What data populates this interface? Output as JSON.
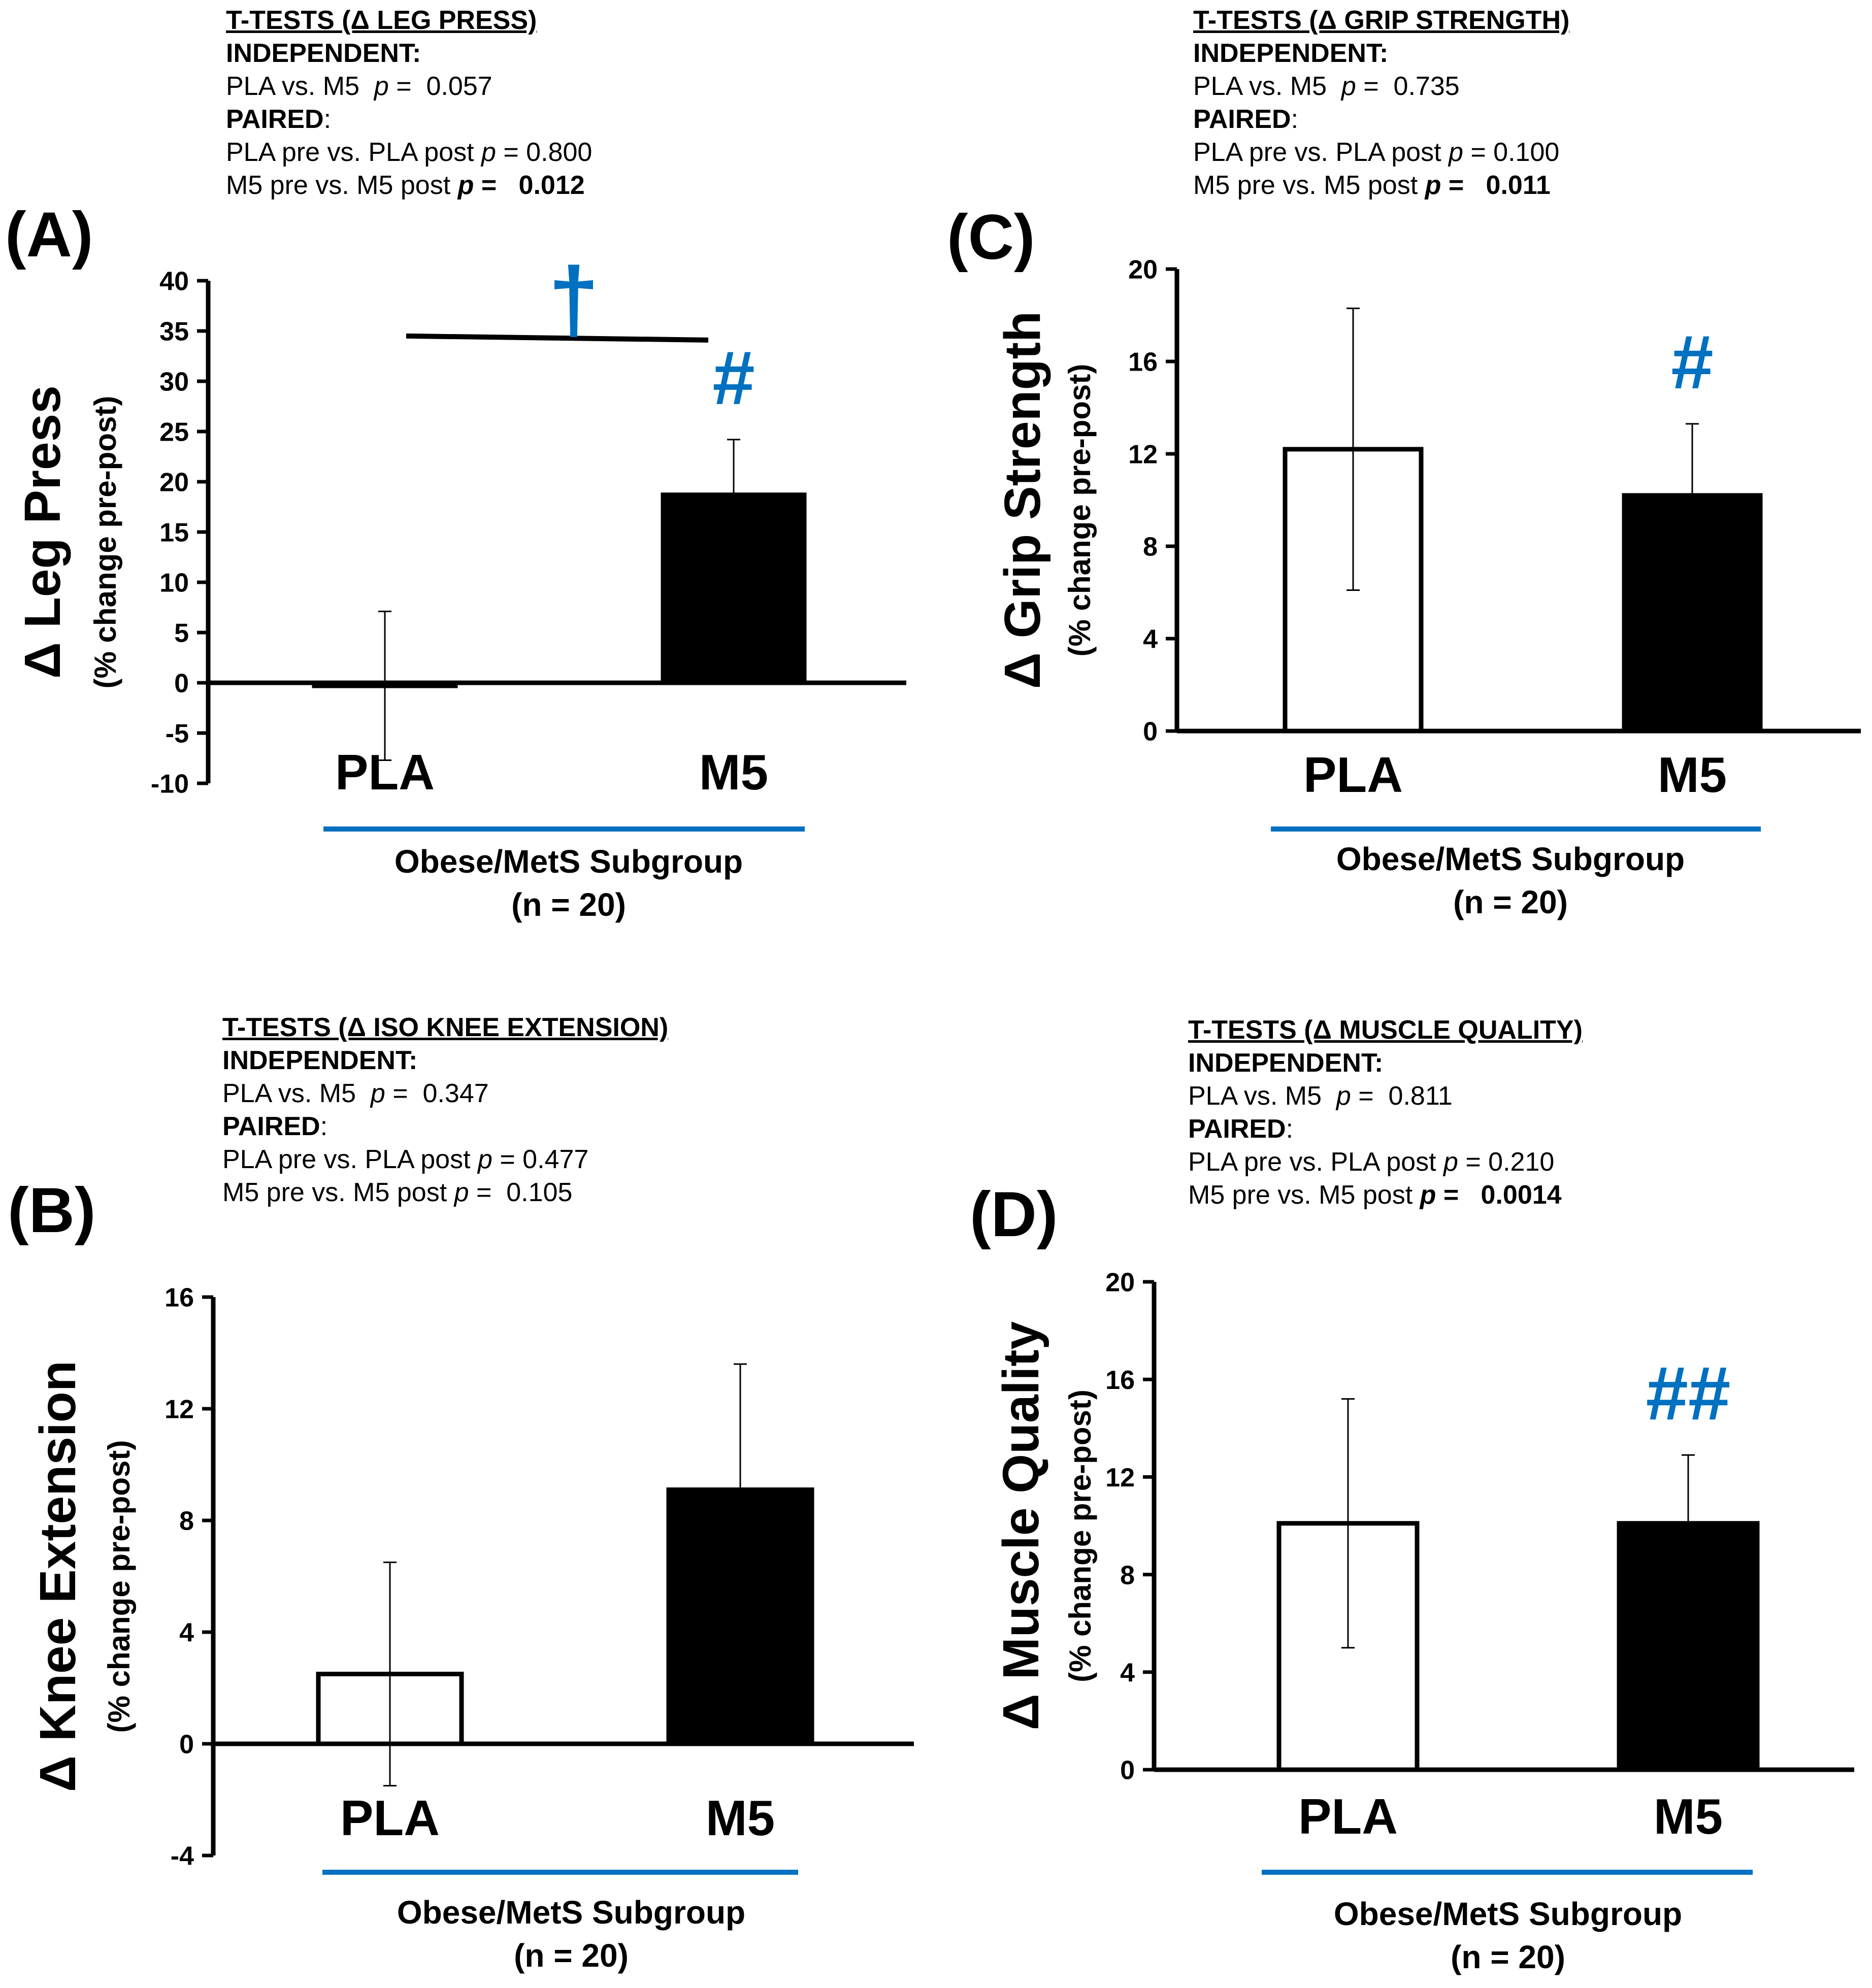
{
  "chart_data": [
    {
      "panel": "(A)",
      "type": "bar",
      "title": "T-TESTS (Δ LEG PRESS)",
      "independent_header": "INDEPENDENT:",
      "independent_line": "PLA vs. M5",
      "independent_p": "0.057",
      "paired_header": "PAIRED",
      "paired_lines": [
        {
          "label": "PLA pre vs. PLA post",
          "p": "0.800",
          "significant": false
        },
        {
          "label": "M5 pre vs. M5 post",
          "p": "0.012",
          "significant": true
        }
      ],
      "ylabel": "Δ Leg Press",
      "ylabel_sub": "(% change pre-post)",
      "ylim": [
        -10,
        40
      ],
      "yticks": [
        -10,
        -5,
        0,
        5,
        10,
        15,
        20,
        25,
        30,
        35,
        40
      ],
      "categories": [
        "PLA",
        "M5"
      ],
      "values": [
        -0.3,
        18.7
      ],
      "error": [
        7.4,
        5.5
      ],
      "bar_fill": [
        "#ffffff",
        "#000000"
      ],
      "annotations": [
        {
          "text": "#",
          "target": "M5",
          "color": "#0070c0"
        }
      ],
      "bracket": {
        "text": "†",
        "level": 34.3,
        "color": "#0070c0"
      },
      "xgroup": "Obese/MetS Subgroup",
      "n": "(n = 20)"
    },
    {
      "panel": "(C)",
      "type": "bar",
      "title": "T-TESTS (Δ GRIP STRENGTH)",
      "independent_header": "INDEPENDENT:",
      "independent_line": "PLA vs. M5",
      "independent_p": "0.735",
      "paired_header": "PAIRED",
      "paired_lines": [
        {
          "label": "PLA pre vs. PLA post",
          "p": "0.100",
          "significant": false
        },
        {
          "label": "M5 pre vs. M5 post",
          "p": "0.011",
          "significant": true
        }
      ],
      "ylabel": "Δ Grip Strength",
      "ylabel_sub": "(% change pre-post)",
      "ylim": [
        0,
        20
      ],
      "yticks": [
        0,
        4,
        8,
        12,
        16,
        20
      ],
      "categories": [
        "PLA",
        "M5"
      ],
      "values": [
        12.2,
        10.2
      ],
      "error": [
        6.1,
        3.1
      ],
      "bar_fill": [
        "#ffffff",
        "#000000"
      ],
      "annotations": [
        {
          "text": "#",
          "target": "M5",
          "color": "#0070c0"
        }
      ],
      "xgroup": "Obese/MetS Subgroup",
      "n": "(n = 20)"
    },
    {
      "panel": "(B)",
      "type": "bar",
      "title": "T-TESTS (Δ ISO KNEE EXTENSION)",
      "independent_header": "INDEPENDENT:",
      "independent_line": "PLA vs. M5",
      "independent_p": "0.347",
      "paired_header": "PAIRED",
      "paired_lines": [
        {
          "label": "PLA pre vs. PLA post",
          "p": "0.477",
          "significant": false
        },
        {
          "label": "M5 pre vs. M5 post",
          "p": "0.105",
          "significant": false
        }
      ],
      "ylabel": "Δ Knee Extension",
      "ylabel_sub": "(% change pre-post)",
      "ylim": [
        -4,
        16
      ],
      "yticks": [
        -4,
        0,
        4,
        8,
        12,
        16
      ],
      "categories": [
        "PLA",
        "M5"
      ],
      "values": [
        2.5,
        9.1
      ],
      "error": [
        4.0,
        4.5
      ],
      "bar_fill": [
        "#ffffff",
        "#000000"
      ],
      "annotations": [],
      "xgroup": "Obese/MetS Subgroup",
      "n": "(n = 20)"
    },
    {
      "panel": "(D)",
      "type": "bar",
      "title": "T-TESTS (Δ MUSCLE QUALITY)",
      "independent_header": "INDEPENDENT:",
      "independent_line": "PLA vs. M5",
      "independent_p": "0.811",
      "paired_header": "PAIRED",
      "paired_lines": [
        {
          "label": "PLA pre vs. PLA post",
          "p": "0.210",
          "significant": false
        },
        {
          "label": "M5 pre vs. M5 post",
          "p": "0.0014",
          "significant": true
        }
      ],
      "ylabel": "Δ Muscle Quality",
      "ylabel_sub": "(% change pre-post)",
      "ylim": [
        0,
        20
      ],
      "yticks": [
        0,
        4,
        8,
        12,
        16,
        20
      ],
      "categories": [
        "PLA",
        "M5"
      ],
      "values": [
        10.1,
        10.1
      ],
      "error": [
        5.1,
        2.8
      ],
      "bar_fill": [
        "#ffffff",
        "#000000"
      ],
      "annotations": [
        {
          "text": "##",
          "target": "M5",
          "color": "#0070c0"
        }
      ],
      "xgroup": "Obese/MetS Subgroup",
      "n": "(n = 20)"
    }
  ],
  "p_prefix": "p",
  "p_equals": " = ",
  "accent_color": "#0070c0"
}
